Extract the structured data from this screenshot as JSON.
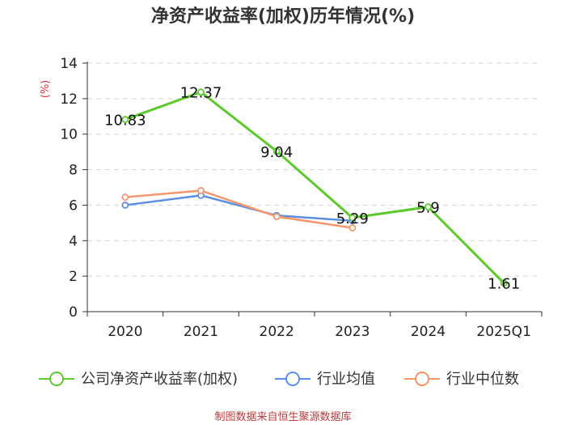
{
  "chart_data": {
    "type": "line",
    "title": "净资产收益率(加权)历年情况(%)",
    "ylabel": "(%)",
    "categories": [
      "2020",
      "2021",
      "2022",
      "2023",
      "2024",
      "2025Q1"
    ],
    "yticks": [
      "0",
      "2",
      "4",
      "6",
      "8",
      "10",
      "12",
      "14"
    ],
    "ylim": [
      0,
      14
    ],
    "grid": true,
    "legend_position": "bottom",
    "series": [
      {
        "name": "公司净资产收益率(加权)",
        "color": "#5cc92c",
        "values": [
          10.83,
          12.37,
          9.04,
          5.29,
          5.9,
          1.61
        ],
        "labels": [
          "10.83",
          "12.37",
          "9.04",
          "5.29",
          "5.9",
          "1.61"
        ]
      },
      {
        "name": "行业均值",
        "color": "#5b8fe4",
        "values": [
          6.0,
          6.55,
          5.42,
          5.12,
          null,
          null
        ]
      },
      {
        "name": "行业中位数",
        "color": "#f5956a",
        "values": [
          6.45,
          6.82,
          5.36,
          4.72,
          null,
          null
        ]
      }
    ],
    "source": "制图数据来自恒生聚源数据库"
  }
}
